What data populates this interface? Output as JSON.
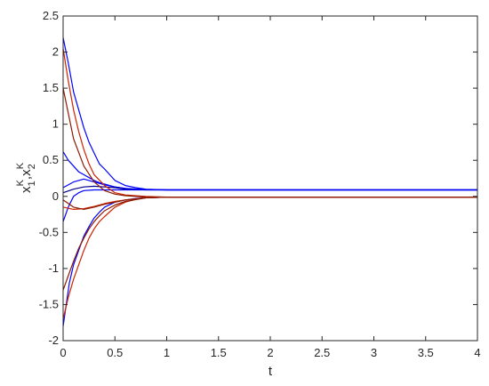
{
  "chart_data": {
    "type": "line",
    "title": "",
    "xlabel": "t",
    "ylabel": {
      "a": "x",
      "a_sub": "1",
      "a_sup": "K",
      "sep": ",",
      "b": "x",
      "b_sub": "2",
      "b_sup": "K"
    },
    "xlim": [
      0,
      4
    ],
    "ylim": [
      -2,
      2.5
    ],
    "xticks": [
      0,
      0.5,
      1,
      1.5,
      2,
      2.5,
      3,
      3.5,
      4
    ],
    "xtick_labels": [
      "0",
      "0.5",
      "1",
      "1.5",
      "2",
      "2.5",
      "3",
      "3.5",
      "4"
    ],
    "yticks": [
      -2,
      -1.5,
      -1,
      -0.5,
      0,
      0.5,
      1,
      1.5,
      2,
      2.5
    ],
    "ytick_labels": [
      "-2",
      "-1.5",
      "-1",
      "-0.5",
      "0",
      "0.5",
      "1",
      "1.5",
      "2",
      "2.5"
    ],
    "grid": false,
    "colors": {
      "blue": "#0000ff",
      "navy": "#000090",
      "red": "#cc2200",
      "darkred": "#8b1a00",
      "frame": "#262626"
    },
    "series": [
      {
        "color": "blue",
        "x": [
          0,
          0.05,
          0.1,
          0.15,
          0.2,
          0.25,
          0.3,
          0.35,
          0.4,
          0.5,
          0.6,
          0.7,
          0.8,
          1.0,
          1.5,
          2,
          4
        ],
        "y": [
          2.2,
          1.85,
          1.45,
          1.2,
          0.95,
          0.75,
          0.6,
          0.45,
          0.38,
          0.22,
          0.15,
          0.12,
          0.1,
          0.09,
          0.09,
          0.09,
          0.09
        ]
      },
      {
        "color": "blue",
        "x": [
          0,
          0.05,
          0.1,
          0.15,
          0.2,
          0.25,
          0.3,
          0.35,
          0.4,
          0.45,
          0.5,
          0.6,
          0.7,
          0.8,
          1.0,
          1.5,
          4
        ],
        "y": [
          0.62,
          0.5,
          0.42,
          0.34,
          0.3,
          0.26,
          0.22,
          0.19,
          0.17,
          0.15,
          0.13,
          0.11,
          0.1,
          0.095,
          0.09,
          0.09,
          0.09
        ]
      },
      {
        "color": "blue",
        "x": [
          0,
          0.1,
          0.2,
          0.3,
          0.4,
          0.5,
          0.6,
          0.8,
          1.0,
          4
        ],
        "y": [
          0.12,
          0.2,
          0.24,
          0.2,
          0.16,
          0.13,
          0.11,
          0.095,
          0.09,
          0.09
        ]
      },
      {
        "color": "navy",
        "x": [
          0,
          0.1,
          0.2,
          0.3,
          0.4,
          0.5,
          0.6,
          0.8,
          1.0,
          4
        ],
        "y": [
          0.05,
          0.1,
          0.13,
          0.14,
          0.13,
          0.12,
          0.1,
          0.09,
          0.09,
          0.09
        ]
      },
      {
        "color": "blue",
        "x": [
          0,
          0.05,
          0.1,
          0.15,
          0.2,
          0.3,
          0.4,
          0.5,
          0.6,
          0.8,
          1.0,
          4
        ],
        "y": [
          -0.35,
          -0.15,
          0.0,
          0.05,
          0.08,
          0.09,
          0.09,
          0.09,
          0.09,
          0.09,
          0.09,
          0.09
        ]
      },
      {
        "color": "blue",
        "x": [
          0,
          0.03,
          0.06,
          0.1,
          0.15,
          0.2,
          0.25,
          0.3,
          0.35,
          0.4,
          0.5,
          0.6,
          0.7,
          0.8,
          1.0,
          4
        ],
        "y": [
          -1.8,
          -1.5,
          -1.2,
          -0.95,
          -0.75,
          -0.55,
          -0.42,
          -0.3,
          -0.22,
          -0.15,
          -0.08,
          -0.05,
          -0.03,
          -0.02,
          -0.01,
          -0.01
        ]
      },
      {
        "color": "red",
        "x": [
          0,
          0.05,
          0.1,
          0.15,
          0.2,
          0.25,
          0.3,
          0.4,
          0.5,
          0.6,
          0.8,
          1.0,
          4
        ],
        "y": [
          2.05,
          1.6,
          1.2,
          0.9,
          0.65,
          0.45,
          0.3,
          0.15,
          0.05,
          0.02,
          0.0,
          -0.01,
          -0.01
        ]
      },
      {
        "color": "darkred",
        "x": [
          0,
          0.1,
          0.2,
          0.3,
          0.4,
          0.5,
          0.6,
          0.8,
          1.0,
          4
        ],
        "y": [
          1.5,
          0.8,
          0.42,
          0.2,
          0.08,
          0.03,
          0.01,
          -0.01,
          -0.01,
          -0.01
        ]
      },
      {
        "color": "red",
        "x": [
          0,
          0.05,
          0.1,
          0.15,
          0.2,
          0.25,
          0.3,
          0.35,
          0.4,
          0.5,
          0.6,
          0.7,
          0.8,
          1.0,
          4
        ],
        "y": [
          -1.7,
          -1.4,
          -1.15,
          -0.95,
          -0.75,
          -0.58,
          -0.45,
          -0.35,
          -0.28,
          -0.15,
          -0.08,
          -0.04,
          -0.02,
          -0.01,
          -0.01
        ]
      },
      {
        "color": "darkred",
        "x": [
          0,
          0.05,
          0.1,
          0.15,
          0.2,
          0.25,
          0.3,
          0.35,
          0.4,
          0.5,
          0.6,
          0.8,
          1.0,
          4
        ],
        "y": [
          -1.3,
          -1.1,
          -0.9,
          -0.72,
          -0.58,
          -0.45,
          -0.35,
          -0.27,
          -0.2,
          -0.12,
          -0.07,
          -0.02,
          -0.01,
          -0.01
        ]
      },
      {
        "color": "red",
        "x": [
          0,
          0.1,
          0.2,
          0.3,
          0.4,
          0.5,
          0.6,
          0.8,
          1.0,
          4
        ],
        "y": [
          -0.15,
          -0.18,
          -0.17,
          -0.14,
          -0.1,
          -0.07,
          -0.05,
          -0.02,
          -0.01,
          -0.01
        ]
      },
      {
        "color": "darkred",
        "x": [
          0,
          0.1,
          0.2,
          0.3,
          0.4,
          0.5,
          0.6,
          0.8,
          1.0,
          4
        ],
        "y": [
          -0.05,
          -0.15,
          -0.18,
          -0.15,
          -0.11,
          -0.08,
          -0.05,
          -0.02,
          -0.01,
          -0.01
        ]
      }
    ]
  }
}
